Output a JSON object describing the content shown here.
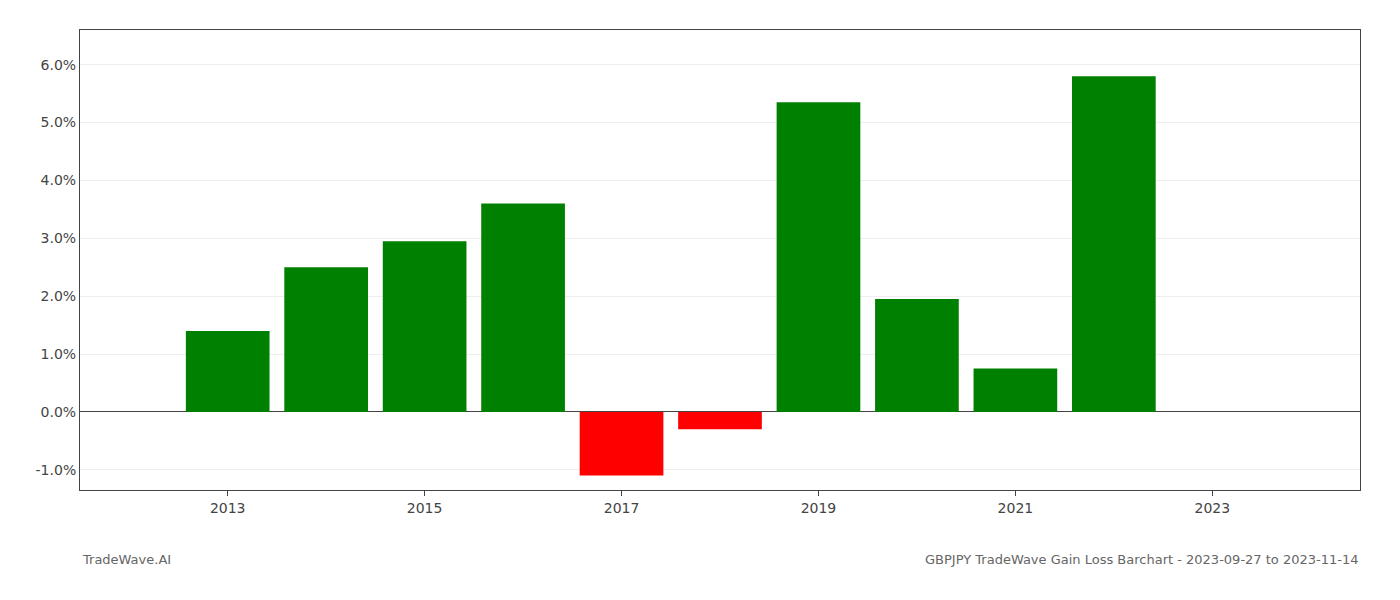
{
  "chart_data": {
    "type": "bar",
    "x": [
      2013,
      2014,
      2015,
      2016,
      2017,
      2018,
      2019,
      2020,
      2021,
      2022
    ],
    "values": [
      0.014,
      0.025,
      0.0295,
      0.036,
      -0.011,
      -0.003,
      0.0535,
      0.0195,
      0.0075,
      0.058
    ],
    "colors": [
      "#008000",
      "#008000",
      "#008000",
      "#008000",
      "#ff0000",
      "#ff0000",
      "#008000",
      "#008000",
      "#008000",
      "#008000"
    ],
    "xlim": [
      2011.5,
      2024.5
    ],
    "xticks": [
      2013,
      2015,
      2017,
      2019,
      2021,
      2023
    ],
    "ylim": [
      -0.0135,
      0.066
    ],
    "yticks": [
      {
        "value": -0.01,
        "label": "-1.0%"
      },
      {
        "value": 0.0,
        "label": "0.0%"
      },
      {
        "value": 0.01,
        "label": "1.0%"
      },
      {
        "value": 0.02,
        "label": "2.0%"
      },
      {
        "value": 0.03,
        "label": "3.0%"
      },
      {
        "value": 0.04,
        "label": "4.0%"
      },
      {
        "value": 0.05,
        "label": "5.0%"
      },
      {
        "value": 0.06,
        "label": "6.0%"
      }
    ],
    "grid": true,
    "annotations": [
      "TradeWave.AI",
      "GBPJPY TradeWave Gain Loss Barchart - 2023-09-27 to 2023-11-14"
    ]
  }
}
